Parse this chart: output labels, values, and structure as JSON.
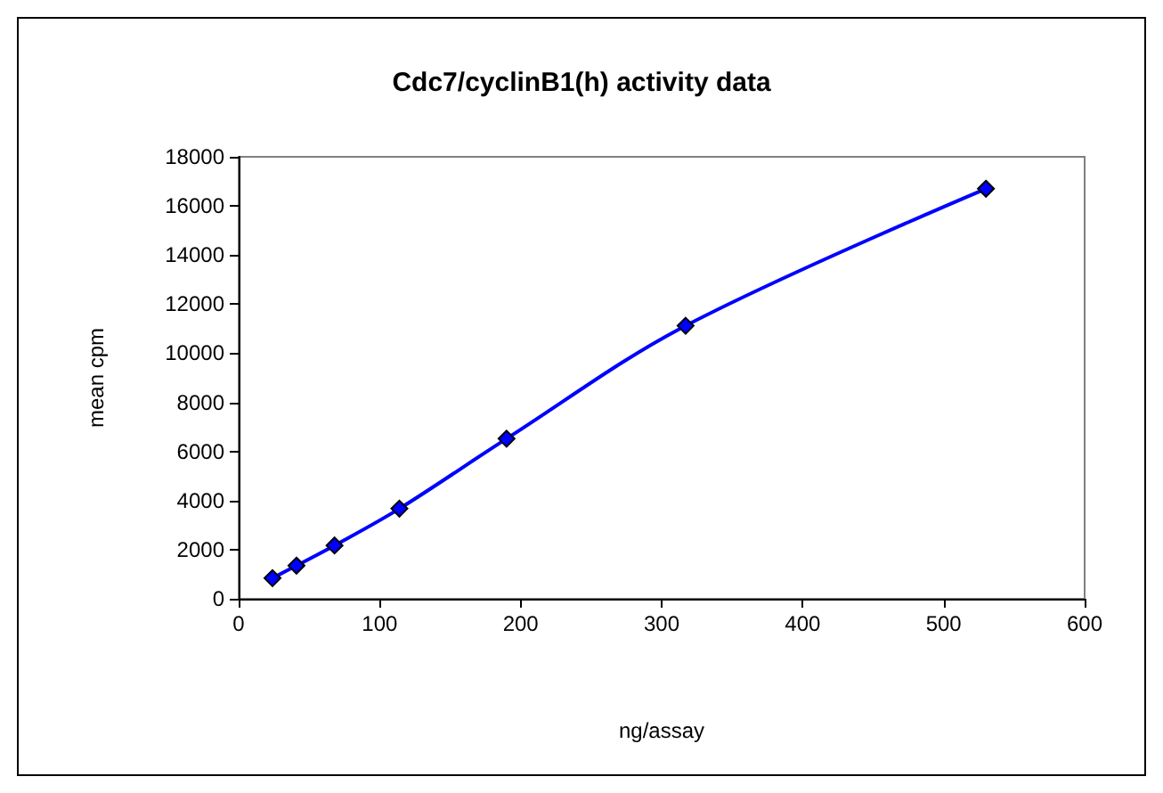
{
  "chart_data": {
    "type": "line",
    "title": "Cdc7/cyclinB1(h) activity data",
    "xlabel": "ng/assay",
    "ylabel": "mean cpm",
    "x": [
      24,
      41,
      68,
      114,
      190,
      317,
      530
    ],
    "series": [
      {
        "color": "#0000ff",
        "values": [
          840,
          1350,
          2170,
          3670,
          6520,
          11120,
          16700
        ]
      }
    ],
    "xlim": [
      0,
      600
    ],
    "xticks": [
      0,
      100,
      200,
      300,
      400,
      500,
      600
    ],
    "ylim": [
      0,
      18000
    ],
    "yticks": [
      0,
      2000,
      4000,
      6000,
      8000,
      10000,
      12000,
      14000,
      16000,
      18000
    ],
    "grid": false,
    "marker": "diamond",
    "line_style": "solid"
  }
}
